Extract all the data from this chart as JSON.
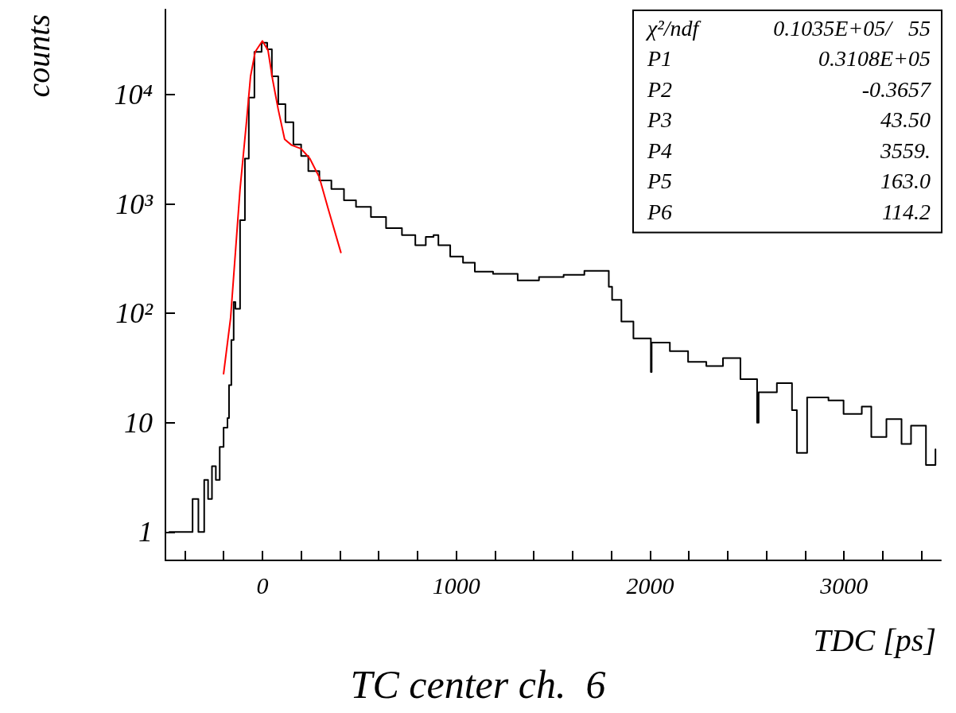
{
  "chart_data": {
    "type": "step",
    "title": "TC center ch.  6",
    "xlabel": "TDC [ps]",
    "ylabel": "counts",
    "xlim": [
      -500,
      3500
    ],
    "xticks": [
      {
        "value": -400,
        "label": null
      },
      {
        "value": -200,
        "label": null
      },
      0,
      {
        "value": 200,
        "label": null
      },
      {
        "value": 400,
        "label": null
      },
      {
        "value": 600,
        "label": null
      },
      {
        "value": 800,
        "label": null
      },
      1000,
      {
        "value": 1200,
        "label": null
      },
      {
        "value": 1400,
        "label": null
      },
      {
        "value": 1600,
        "label": null
      },
      {
        "value": 1800,
        "label": null
      },
      2000,
      {
        "value": 2200,
        "label": null
      },
      {
        "value": 2400,
        "label": null
      },
      {
        "value": 2600,
        "label": null
      },
      {
        "value": 2800,
        "label": null
      },
      3000,
      {
        "value": 3200,
        "label": null
      },
      {
        "value": 3400,
        "label": null
      }
    ],
    "ylim": [
      0.55,
      60000
    ],
    "log": "y",
    "yticks": [
      1,
      10,
      {
        "value": 100,
        "label": "10²"
      },
      {
        "value": 1000,
        "label": "10³"
      },
      {
        "value": 10000,
        "label": "10⁴"
      }
    ],
    "grid": false,
    "marker": "none",
    "line_style": "solid",
    "annotations": [
      "χ²/ndf",
      "0.1035E+05/   55",
      "P1",
      "0.3108E+05",
      "P2",
      "-0.3657",
      "P3",
      "43.50",
      "P4",
      "3559.",
      "P5",
      "163.0",
      "P6",
      "114.2"
    ],
    "series": [
      {
        "color": "#000000",
        "x": [
          -480,
          -440,
          -400,
          -360,
          -330,
          -300,
          -280,
          -260,
          -240,
          -220,
          -200,
          -180,
          -172,
          -160,
          -148,
          -139,
          -115,
          -90,
          -70,
          -41,
          -4,
          25,
          49,
          82,
          119,
          160,
          200,
          237,
          294,
          356,
          421,
          483,
          560,
          638,
          720,
          789,
          843,
          883,
          908,
          969,
          1035,
          1096,
          1190,
          1317,
          1427,
          1554,
          1661,
          1742,
          1787,
          1804,
          1852,
          1914,
          2004,
          2008,
          2102,
          2196,
          2290,
          2376,
          2466,
          2552,
          2560,
          2654,
          2732,
          2757,
          2810,
          2920,
          2998,
          3092,
          3141,
          3219,
          3297,
          3346,
          3423,
          3472
        ],
        "values": [
          1,
          1,
          1,
          2,
          1,
          3,
          2,
          4,
          3,
          6,
          9,
          11,
          22,
          57,
          127,
          110,
          710,
          2600,
          9400,
          24600,
          29800,
          26000,
          14700,
          8200,
          5600,
          3500,
          2750,
          2000,
          1640,
          1370,
          1080,
          940,
          760,
          600,
          520,
          420,
          500,
          520,
          420,
          330,
          290,
          240,
          230,
          200,
          215,
          225,
          245,
          245,
          175,
          133,
          84,
          59,
          29,
          54,
          45,
          36,
          33,
          39,
          25,
          10,
          19,
          23,
          13,
          5.3,
          17,
          16,
          12,
          14,
          7.4,
          10.8,
          6.4,
          9.4,
          4.1,
          5.7
        ]
      },
      {
        "type": "line",
        "color": "#ff0000",
        "x": [
          -200,
          -164,
          -115,
          -82,
          -61,
          -37,
          0,
          29,
          53,
          82,
          115,
          151,
          200,
          245,
          294,
          339,
          405
        ],
        "values": [
          28,
          90,
          1370,
          5600,
          14700,
          24600,
          31000,
          25500,
          13700,
          7300,
          3900,
          3450,
          3200,
          2600,
          1750,
          910,
          360
        ]
      }
    ]
  }
}
